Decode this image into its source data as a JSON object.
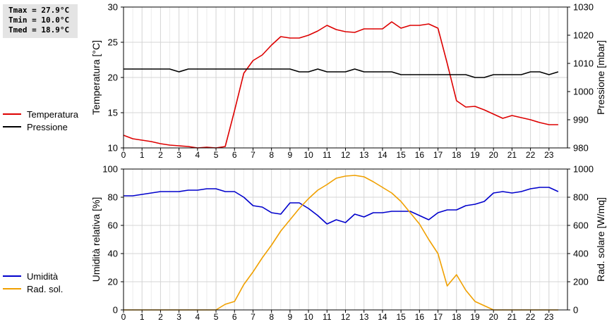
{
  "stats": {
    "tmax": "Tmax = 27.9°C",
    "tmin": "Tmin = 10.0°C",
    "tmed": "Tmed = 18.9°C"
  },
  "legend_top": [
    {
      "label": "Temperatura",
      "color": "#dd0000"
    },
    {
      "label": "Pressione",
      "color": "#000000"
    }
  ],
  "legend_bottom": [
    {
      "label": "Umidità",
      "color": "#0000cc"
    },
    {
      "label": "Rad. sol.",
      "color": "#f0a000"
    }
  ],
  "chart_data": [
    {
      "type": "line",
      "ylabel": "Temperatura [°C]",
      "y2label": "Pressione [mbar]",
      "xlim": [
        0,
        24
      ],
      "ylim": [
        10,
        30
      ],
      "y2lim": [
        980,
        1030
      ],
      "xticks": [
        "0",
        "1",
        "2",
        "3",
        "4",
        "5",
        "6",
        "7",
        "8",
        "9",
        "10",
        "11",
        "12",
        "13",
        "14",
        "15",
        "16",
        "17",
        "18",
        "19",
        "20",
        "21",
        "22",
        "23"
      ],
      "yticks": [
        "10",
        "15",
        "20",
        "25",
        "30"
      ],
      "y2ticks": [
        "980",
        "990",
        "1000",
        "1010",
        "1020",
        "1030"
      ],
      "grid": true,
      "legend": "left",
      "series": [
        {
          "name": "Temperatura",
          "axis": "left",
          "color": "#dd0000",
          "x": [
            0,
            0.5,
            1,
            1.5,
            2,
            2.5,
            3,
            3.5,
            4,
            4.5,
            5,
            5.5,
            6,
            6.5,
            7,
            7.5,
            8,
            8.5,
            9,
            9.5,
            10,
            10.5,
            11,
            11.5,
            12,
            12.5,
            13,
            13.5,
            14,
            14.5,
            15,
            15.5,
            16,
            16.5,
            17,
            17.5,
            18,
            18.5,
            19,
            19.5,
            20,
            20.5,
            21,
            21.5,
            22,
            22.5,
            23,
            23.5
          ],
          "values": [
            11.8,
            11.3,
            11.1,
            10.9,
            10.6,
            10.4,
            10.3,
            10.2,
            10.0,
            10.1,
            10.0,
            10.2,
            15.3,
            20.6,
            22.4,
            23.2,
            24.6,
            25.8,
            25.6,
            25.6,
            26.0,
            26.6,
            27.4,
            26.8,
            26.5,
            26.4,
            26.9,
            26.9,
            26.9,
            27.9,
            27.0,
            27.4,
            27.4,
            27.6,
            27.0,
            22.0,
            16.7,
            15.8,
            15.9,
            15.4,
            14.8,
            14.2,
            14.6,
            14.3,
            14.0,
            13.6,
            13.3,
            13.3
          ]
        },
        {
          "name": "Pressione",
          "axis": "right",
          "color": "#000000",
          "x": [
            0,
            0.5,
            1,
            1.5,
            2,
            2.5,
            3,
            3.5,
            4,
            4.5,
            5,
            5.5,
            6,
            6.5,
            7,
            7.5,
            8,
            8.5,
            9,
            9.5,
            10,
            10.5,
            11,
            11.5,
            12,
            12.5,
            13,
            13.5,
            14,
            14.5,
            15,
            15.5,
            16,
            16.5,
            17,
            17.5,
            18,
            18.5,
            19,
            19.5,
            20,
            20.5,
            21,
            21.5,
            22,
            22.5,
            23,
            23.5
          ],
          "values": [
            1008,
            1008,
            1008,
            1008,
            1008,
            1008,
            1007,
            1008,
            1008,
            1008,
            1008,
            1008,
            1008,
            1008,
            1008,
            1008,
            1008,
            1008,
            1008,
            1007,
            1007,
            1008,
            1007,
            1007,
            1007,
            1008,
            1007,
            1007,
            1007,
            1007,
            1006,
            1006,
            1006,
            1006,
            1006,
            1006,
            1006,
            1006,
            1005,
            1005,
            1006,
            1006,
            1006,
            1006,
            1007,
            1007,
            1006,
            1007
          ]
        }
      ]
    },
    {
      "type": "line",
      "ylabel": "Umidità relativa [%]",
      "y2label": "Rad. solare [W/mq]",
      "xlim": [
        0,
        24
      ],
      "ylim": [
        0,
        100
      ],
      "y2lim": [
        0,
        1000
      ],
      "xticks": [
        "0",
        "1",
        "2",
        "3",
        "4",
        "5",
        "6",
        "7",
        "8",
        "9",
        "10",
        "11",
        "12",
        "13",
        "14",
        "15",
        "16",
        "17",
        "18",
        "19",
        "20",
        "21",
        "22",
        "23"
      ],
      "yticks": [
        "0",
        "20",
        "40",
        "60",
        "80",
        "100"
      ],
      "y2ticks": [
        "0",
        "200",
        "400",
        "600",
        "800",
        "1000"
      ],
      "grid": true,
      "legend": "left",
      "series": [
        {
          "name": "Umidità",
          "axis": "left",
          "color": "#0000cc",
          "x": [
            0,
            0.5,
            1,
            1.5,
            2,
            2.5,
            3,
            3.5,
            4,
            4.5,
            5,
            5.5,
            6,
            6.5,
            7,
            7.5,
            8,
            8.5,
            9,
            9.5,
            10,
            10.5,
            11,
            11.5,
            12,
            12.5,
            13,
            13.5,
            14,
            14.5,
            15,
            15.5,
            16,
            16.5,
            17,
            17.5,
            18,
            18.5,
            19,
            19.5,
            20,
            20.5,
            21,
            21.5,
            22,
            22.5,
            23,
            23.5
          ],
          "values": [
            81,
            81,
            82,
            83,
            84,
            84,
            84,
            85,
            85,
            86,
            86,
            84,
            84,
            80,
            74,
            73,
            69,
            68,
            76,
            76,
            72,
            67,
            61,
            64,
            62,
            68,
            66,
            69,
            69,
            70,
            70,
            70,
            67,
            64,
            69,
            71,
            71,
            74,
            75,
            77,
            83,
            84,
            83,
            84,
            86,
            87,
            87,
            84
          ]
        },
        {
          "name": "Rad. sol.",
          "axis": "right",
          "color": "#f0a000",
          "x": [
            0,
            0.5,
            1,
            1.5,
            2,
            2.5,
            3,
            3.5,
            4,
            4.5,
            5,
            5.5,
            6,
            6.5,
            7,
            7.5,
            8,
            8.5,
            9,
            9.5,
            10,
            10.5,
            11,
            11.5,
            12,
            12.5,
            13,
            13.5,
            14,
            14.5,
            15,
            15.5,
            16,
            16.5,
            17,
            17.5,
            18,
            18.5,
            19,
            19.5,
            20,
            20.5,
            21,
            21.5,
            22,
            22.5,
            23,
            23.5
          ],
          "values": [
            0,
            0,
            0,
            0,
            0,
            0,
            0,
            0,
            0,
            0,
            0,
            40,
            60,
            180,
            270,
            370,
            460,
            560,
            640,
            720,
            790,
            850,
            890,
            935,
            950,
            955,
            945,
            910,
            870,
            830,
            770,
            690,
            610,
            500,
            400,
            170,
            250,
            140,
            60,
            30,
            0,
            0,
            0,
            0,
            0,
            0,
            0,
            0
          ]
        }
      ]
    }
  ]
}
